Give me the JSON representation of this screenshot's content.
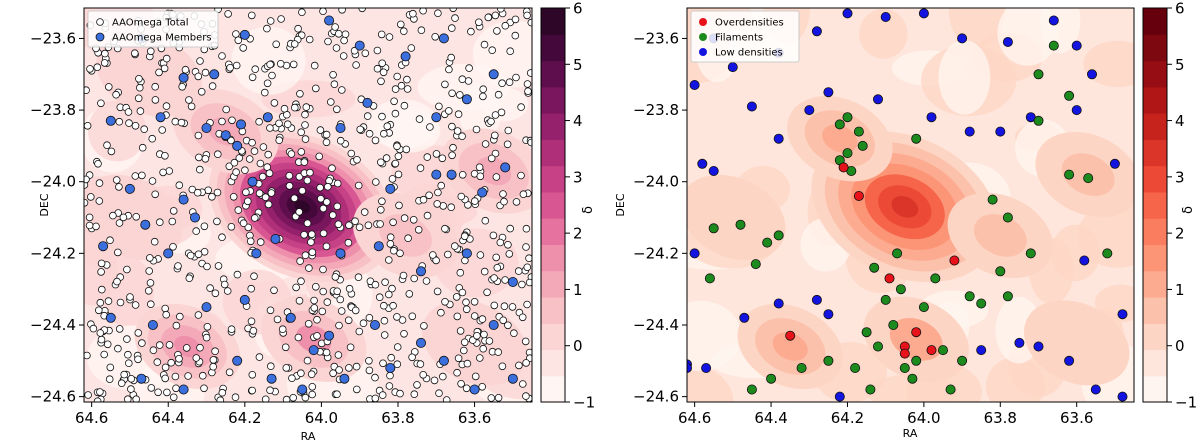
{
  "chart_data": [
    {
      "type": "scatter",
      "xlabel": "RA",
      "ylabel": "DEC",
      "xlim": [
        64.62,
        63.45
      ],
      "ylim": [
        -24.615,
        -23.515
      ],
      "x_ticks": [
        64.6,
        64.4,
        64.2,
        64.0,
        63.8,
        63.6
      ],
      "x_tick_labels": [
        "64.6",
        "64.4",
        "64.2",
        "64.0",
        "63.8",
        "63.6"
      ],
      "y_ticks": [
        -23.6,
        -23.8,
        -24.0,
        -24.2,
        -24.4,
        -24.6
      ],
      "y_tick_labels": [
        "−23.6",
        "−23.8",
        "−24.0",
        "−24.2",
        "−24.4",
        "−24.6"
      ],
      "colorbar": {
        "label": "δ",
        "range": [
          -1,
          6
        ],
        "ticks": [
          "−1",
          "0",
          "1",
          "2",
          "3",
          "4",
          "5",
          "6"
        ],
        "colors": [
          "#fff5f3",
          "#fde5e3",
          "#fbd4d4",
          "#f8c1c6",
          "#f4a9b9",
          "#ee8fac",
          "#e6739f",
          "#d85793",
          "#c64186",
          "#af2f79",
          "#95216c",
          "#7a165d",
          "#5f0e4d",
          "#44093a",
          "#2d0628"
        ]
      },
      "legend": {
        "position": "top-left",
        "entries": [
          {
            "label": "AAOmega Total",
            "marker": "open-circle",
            "color": "#ffffff"
          },
          {
            "label": "AAOmega Members",
            "marker": "filled-circle",
            "color": "#3b6fde"
          }
        ]
      },
      "density_peaks": [
        {
          "ra": 64.05,
          "dec": -24.07,
          "delta": 6.0
        },
        {
          "ra": 64.25,
          "dec": -23.86,
          "delta": 1.5
        },
        {
          "ra": 64.35,
          "dec": -24.46,
          "delta": 1.8
        },
        {
          "ra": 63.55,
          "dec": -23.97,
          "delta": 1.3
        },
        {
          "ra": 64.02,
          "dec": -24.44,
          "delta": 1.6
        },
        {
          "ra": 63.78,
          "dec": -24.15,
          "delta": 1.0
        },
        {
          "ra": 64.5,
          "dec": -24.1,
          "delta": 0.7
        },
        {
          "ra": 64.45,
          "dec": -23.7,
          "delta": 0.5
        },
        {
          "ra": 63.6,
          "dec": -24.45,
          "delta": 0.6
        }
      ],
      "series": [
        {
          "name": "AAOmega Total",
          "count": 900,
          "distribution": "uniform across field"
        },
        {
          "name": "AAOmega Members",
          "points": [
            [
              64.47,
              -23.6
            ],
            [
              64.36,
              -23.71
            ],
            [
              64.28,
              -23.7
            ],
            [
              64.2,
              -23.59
            ],
            [
              63.98,
              -23.55
            ],
            [
              63.9,
              -23.62
            ],
            [
              63.78,
              -23.65
            ],
            [
              63.68,
              -23.6
            ],
            [
              63.55,
              -23.7
            ],
            [
              64.55,
              -23.83
            ],
            [
              64.42,
              -23.82
            ],
            [
              64.3,
              -23.85
            ],
            [
              64.25,
              -23.87
            ],
            [
              64.21,
              -23.84
            ],
            [
              64.22,
              -23.9
            ],
            [
              64.14,
              -23.82
            ],
            [
              63.95,
              -23.85
            ],
            [
              63.88,
              -23.78
            ],
            [
              63.7,
              -23.82
            ],
            [
              63.62,
              -23.77
            ],
            [
              64.5,
              -24.02
            ],
            [
              64.36,
              -24.05
            ],
            [
              64.18,
              -24.0
            ],
            [
              63.82,
              -24.02
            ],
            [
              63.7,
              -23.98
            ],
            [
              63.66,
              -23.98
            ],
            [
              63.58,
              -24.03
            ],
            [
              63.52,
              -23.96
            ],
            [
              64.57,
              -24.18
            ],
            [
              64.46,
              -24.12
            ],
            [
              64.4,
              -24.2
            ],
            [
              64.33,
              -24.1
            ],
            [
              64.17,
              -24.2
            ],
            [
              64.12,
              -24.16
            ],
            [
              63.95,
              -24.2
            ],
            [
              63.85,
              -24.18
            ],
            [
              63.74,
              -24.25
            ],
            [
              63.62,
              -24.2
            ],
            [
              63.5,
              -24.28
            ],
            [
              64.55,
              -24.38
            ],
            [
              64.44,
              -24.4
            ],
            [
              64.3,
              -24.35
            ],
            [
              64.2,
              -24.33
            ],
            [
              64.08,
              -24.38
            ],
            [
              64.02,
              -24.47
            ],
            [
              63.98,
              -24.43
            ],
            [
              63.86,
              -24.4
            ],
            [
              63.74,
              -24.45
            ],
            [
              63.68,
              -24.5
            ],
            [
              63.55,
              -24.4
            ],
            [
              64.47,
              -24.55
            ],
            [
              64.36,
              -24.58
            ],
            [
              64.22,
              -24.5
            ],
            [
              64.13,
              -24.55
            ],
            [
              64.05,
              -24.58
            ],
            [
              63.94,
              -24.55
            ],
            [
              63.82,
              -24.52
            ],
            [
              63.6,
              -24.58
            ],
            [
              63.5,
              -24.55
            ]
          ]
        }
      ]
    },
    {
      "type": "scatter",
      "xlabel": "RA",
      "ylabel": "DEC",
      "xlim": [
        64.62,
        63.45
      ],
      "ylim": [
        -24.615,
        -23.515
      ],
      "x_ticks": [
        64.6,
        64.4,
        64.2,
        64.0,
        63.8,
        63.6
      ],
      "x_tick_labels": [
        "64.6",
        "64.4",
        "64.2",
        "64.0",
        "63.8",
        "63.6"
      ],
      "y_ticks": [
        -23.6,
        -23.8,
        -24.0,
        -24.2,
        -24.4,
        -24.6
      ],
      "y_tick_labels": [
        "−23.6",
        "−23.8",
        "−24.0",
        "−24.2",
        "−24.4",
        "−24.6"
      ],
      "colorbar": {
        "label": "δ",
        "range": [
          -1,
          6
        ],
        "ticks": [
          "−1",
          "0",
          "1",
          "2",
          "3",
          "4",
          "5",
          "6"
        ],
        "colors": [
          "#fff5f0",
          "#fee6dc",
          "#fdd5c4",
          "#fcc1ab",
          "#fcab91",
          "#fc9476",
          "#fb7d5f",
          "#f6644a",
          "#ec4a37",
          "#db3428",
          "#c6231d",
          "#b01616",
          "#960e13",
          "#7d080f",
          "#67000d"
        ]
      },
      "legend": {
        "position": "top-left",
        "entries": [
          {
            "label": "Overdensities",
            "marker": "filled-circle",
            "color": "#e8121a"
          },
          {
            "label": "Filaments",
            "marker": "filled-circle",
            "color": "#1d8a1d"
          },
          {
            "label": "Low densities",
            "marker": "filled-circle",
            "color": "#1414e0"
          }
        ]
      },
      "density_peaks": [
        {
          "ra": 64.05,
          "dec": -24.07,
          "delta": 3.5
        },
        {
          "ra": 64.22,
          "dec": -23.88,
          "delta": 1.3
        },
        {
          "ra": 64.35,
          "dec": -24.46,
          "delta": 1.4
        },
        {
          "ra": 63.57,
          "dec": -23.98,
          "delta": 1.1
        },
        {
          "ra": 64.02,
          "dec": -24.44,
          "delta": 1.2
        },
        {
          "ra": 63.8,
          "dec": -24.15,
          "delta": 0.8
        },
        {
          "ra": 64.5,
          "dec": -24.1,
          "delta": 0.5
        },
        {
          "ra": 63.6,
          "dec": -24.45,
          "delta": 0.5
        }
      ],
      "series": [
        {
          "name": "Overdensities",
          "color": "#e8121a",
          "points": [
            [
              64.21,
              -23.96
            ],
            [
              64.17,
              -24.04
            ],
            [
              64.09,
              -24.27
            ],
            [
              63.92,
              -24.22
            ],
            [
              64.35,
              -24.43
            ],
            [
              64.05,
              -24.46
            ],
            [
              64.02,
              -24.42
            ],
            [
              63.98,
              -24.47
            ],
            [
              64.05,
              -24.48
            ]
          ]
        },
        {
          "name": "Filaments",
          "color": "#1d8a1d",
          "points": [
            [
              63.66,
              -23.62
            ],
            [
              63.7,
              -23.7
            ],
            [
              63.62,
              -23.76
            ],
            [
              63.7,
              -23.83
            ],
            [
              64.2,
              -23.82
            ],
            [
              64.22,
              -23.84
            ],
            [
              64.17,
              -23.86
            ],
            [
              64.2,
              -23.92
            ],
            [
              64.22,
              -23.94
            ],
            [
              64.16,
              -23.9
            ],
            [
              64.19,
              -23.97
            ],
            [
              64.02,
              -23.88
            ],
            [
              64.38,
              -24.15
            ],
            [
              64.41,
              -24.17
            ],
            [
              64.48,
              -24.12
            ],
            [
              64.55,
              -24.13
            ],
            [
              64.44,
              -24.23
            ],
            [
              64.56,
              -24.27
            ],
            [
              63.82,
              -24.05
            ],
            [
              63.78,
              -24.1
            ],
            [
              63.72,
              -24.2
            ],
            [
              63.8,
              -24.25
            ],
            [
              63.62,
              -23.98
            ],
            [
              63.57,
              -23.99
            ],
            [
              63.52,
              -24.2
            ],
            [
              63.88,
              -24.32
            ],
            [
              63.85,
              -24.34
            ],
            [
              63.78,
              -24.32
            ],
            [
              64.1,
              -24.33
            ],
            [
              64.06,
              -24.3
            ],
            [
              64.0,
              -24.35
            ],
            [
              64.08,
              -24.4
            ],
            [
              64.15,
              -24.42
            ],
            [
              64.12,
              -24.46
            ],
            [
              64.02,
              -24.5
            ],
            [
              64.05,
              -24.52
            ],
            [
              63.95,
              -24.47
            ],
            [
              63.9,
              -24.5
            ],
            [
              64.45,
              -24.58
            ],
            [
              64.4,
              -24.55
            ],
            [
              64.32,
              -24.52
            ],
            [
              64.25,
              -24.5
            ],
            [
              64.18,
              -24.52
            ],
            [
              64.03,
              -24.55
            ],
            [
              63.93,
              -24.58
            ],
            [
              64.14,
              -24.58
            ],
            [
              64.07,
              -24.2
            ],
            [
              64.13,
              -24.24
            ],
            [
              63.97,
              -24.27
            ]
          ]
        },
        {
          "name": "Low densities",
          "color": "#1414e0",
          "points": [
            [
              64.55,
              -23.6
            ],
            [
              64.6,
              -23.73
            ],
            [
              64.5,
              -23.68
            ],
            [
              64.38,
              -23.64
            ],
            [
              64.28,
              -23.58
            ],
            [
              64.2,
              -23.53
            ],
            [
              64.1,
              -23.54
            ],
            [
              64.0,
              -23.53
            ],
            [
              63.9,
              -23.6
            ],
            [
              63.78,
              -23.61
            ],
            [
              63.66,
              -23.55
            ],
            [
              63.6,
              -23.62
            ],
            [
              63.56,
              -23.7
            ],
            [
              64.45,
              -23.79
            ],
            [
              64.3,
              -23.8
            ],
            [
              64.12,
              -23.77
            ],
            [
              63.98,
              -23.82
            ],
            [
              63.88,
              -23.86
            ],
            [
              63.8,
              -23.86
            ],
            [
              63.72,
              -23.82
            ],
            [
              63.6,
              -23.8
            ],
            [
              64.58,
              -23.95
            ],
            [
              64.55,
              -23.97
            ],
            [
              64.38,
              -23.88
            ],
            [
              64.25,
              -23.75
            ],
            [
              63.5,
              -23.95
            ],
            [
              63.58,
              -24.22
            ],
            [
              63.48,
              -24.37
            ],
            [
              64.6,
              -24.2
            ],
            [
              64.57,
              -24.52
            ],
            [
              64.47,
              -24.38
            ],
            [
              64.38,
              -24.34
            ],
            [
              64.28,
              -24.33
            ],
            [
              64.25,
              -24.37
            ],
            [
              63.85,
              -24.47
            ],
            [
              63.75,
              -24.45
            ],
            [
              63.7,
              -24.46
            ],
            [
              63.62,
              -24.5
            ],
            [
              63.55,
              -24.58
            ],
            [
              63.48,
              -24.6
            ],
            [
              64.22,
              -24.6
            ],
            [
              64.62,
              -24.51
            ],
            [
              64.62,
              -24.52
            ]
          ]
        }
      ]
    }
  ]
}
